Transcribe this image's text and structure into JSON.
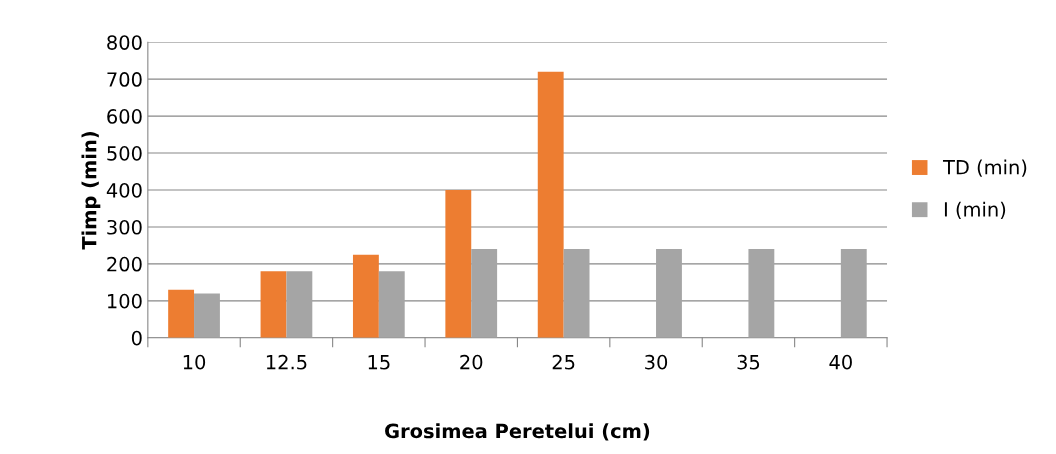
{
  "chart_data": {
    "type": "bar",
    "xlabel": "Grosimea Peretelui (cm)",
    "ylabel": "Timp (min)",
    "categories": [
      "10",
      "12.5",
      "15",
      "20",
      "25",
      "30",
      "35",
      "40"
    ],
    "series": [
      {
        "name": "TD (min)",
        "color": "#ed7d31",
        "values": [
          130,
          180,
          225,
          400,
          720,
          null,
          null,
          null
        ]
      },
      {
        "name": "I (min)",
        "color": "#a5a5a5",
        "values": [
          120,
          180,
          180,
          240,
          240,
          240,
          240,
          240
        ]
      }
    ],
    "ylim": [
      0,
      800
    ],
    "yticks": [
      0,
      100,
      200,
      300,
      400,
      500,
      600,
      700,
      800
    ],
    "grid": "y",
    "legend": "right"
  }
}
